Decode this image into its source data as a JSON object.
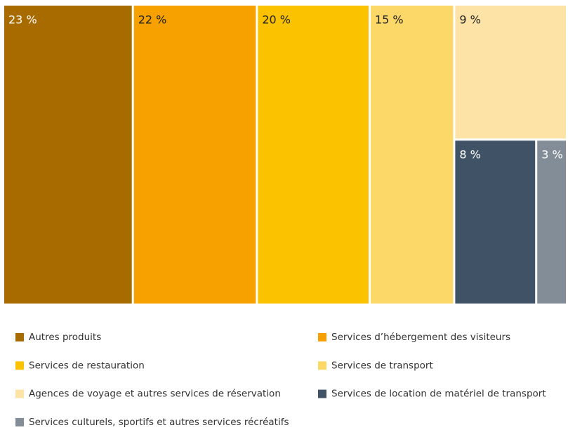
{
  "chart_data": {
    "type": "treemap",
    "categories": [
      "Autres produits",
      "Services d’hébergement des visiteurs",
      "Services de restauration",
      "Services de transport",
      "Agences de voyage et autres services de réservation",
      "Services de location de matériel de transport",
      "Services culturels, sportifs et autres services récréatifs"
    ],
    "values": [
      23,
      22,
      20,
      15,
      9,
      8,
      3
    ],
    "value_labels": [
      "23 %",
      "22 %",
      "20 %",
      "15 %",
      "9 %",
      "8 %",
      "3 %"
    ],
    "colors": [
      "#a86b00",
      "#f7a100",
      "#fbc200",
      "#fcd868",
      "#fde3a6",
      "#405266",
      "#838d97"
    ],
    "legend": "bottom"
  }
}
